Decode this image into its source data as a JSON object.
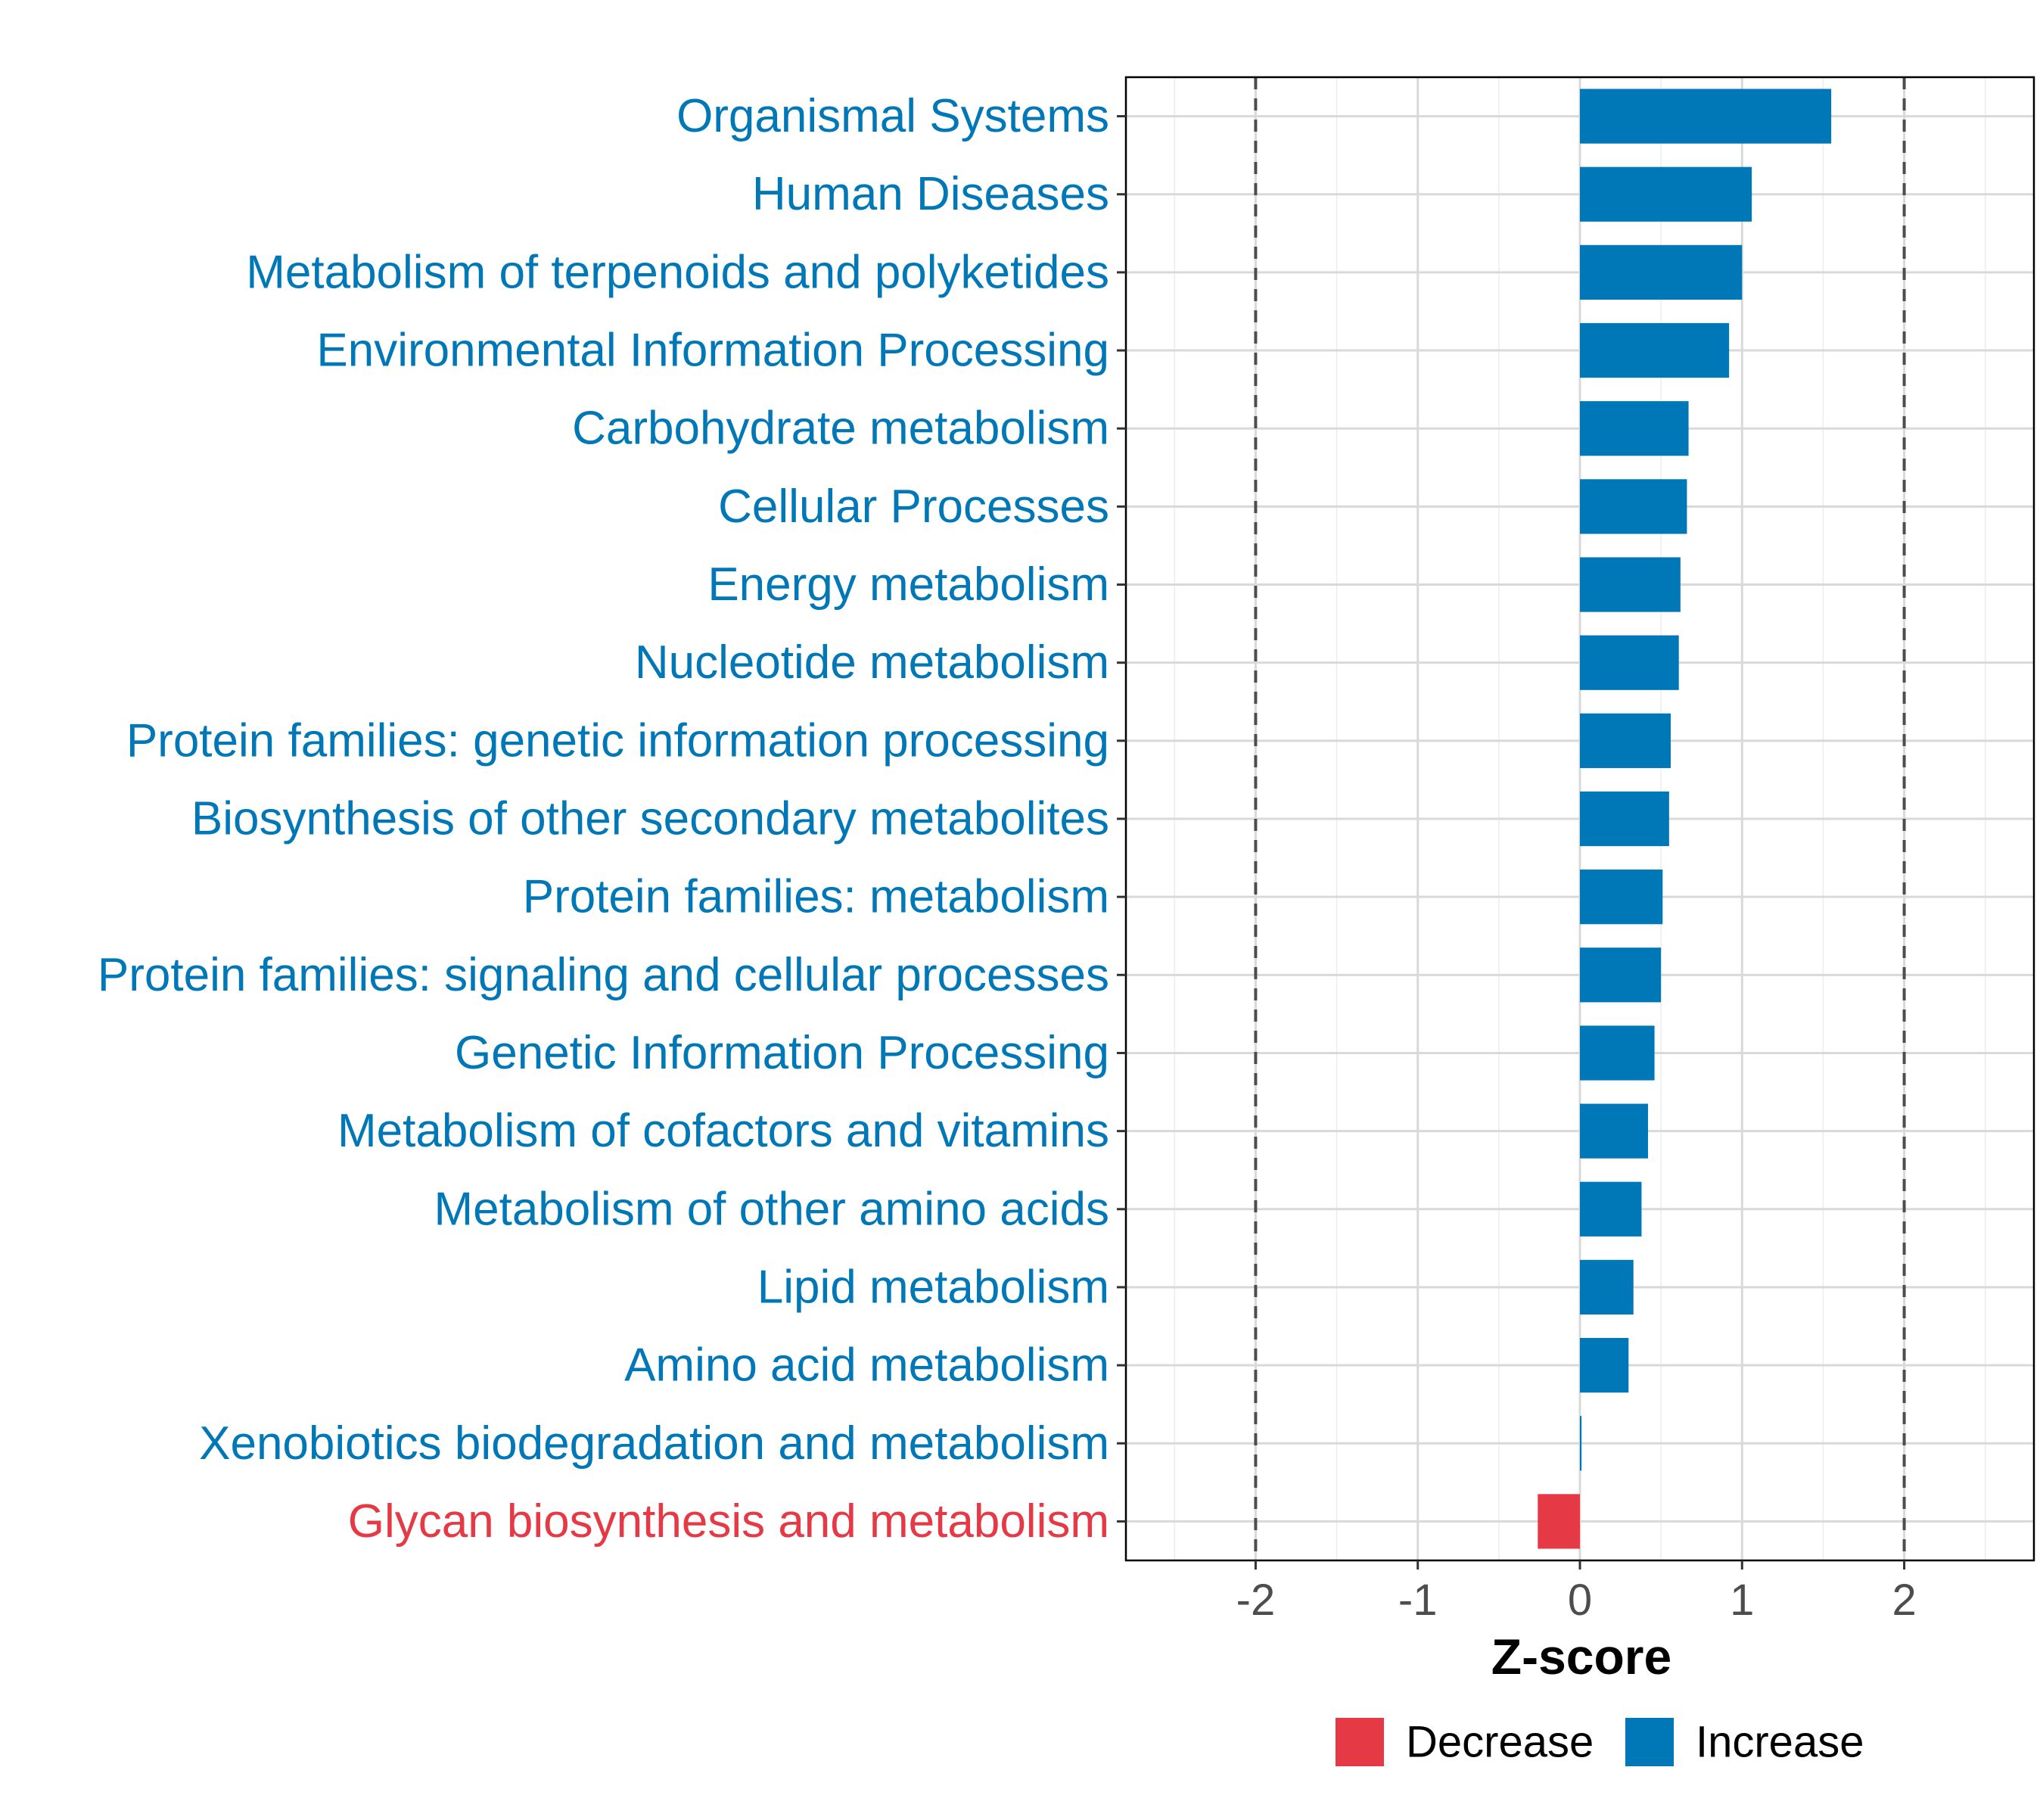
{
  "chart_data": {
    "type": "bar",
    "orientation": "horizontal",
    "xlabel": "Z-score",
    "ylabel": "",
    "xlim": [
      -2.8,
      2.8
    ],
    "x_ticks": [
      -2,
      -1,
      0,
      1,
      2
    ],
    "x_tick_labels": [
      "-2",
      "-1",
      "0",
      "1",
      "2"
    ],
    "reference_lines": [
      -2,
      2
    ],
    "grid": true,
    "categories": [
      "Organismal Systems",
      "Human Diseases",
      "Metabolism of terpenoids and polyketides",
      "Environmental Information Processing",
      "Carbohydrate metabolism",
      "Cellular Processes",
      "Energy metabolism",
      "Nucleotide metabolism",
      "Protein families: genetic information processing",
      "Biosynthesis of other secondary metabolites",
      "Protein families: metabolism",
      "Protein families: signaling and cellular processes",
      "Genetic Information Processing",
      "Metabolism of cofactors and vitamins",
      "Metabolism of other amino acids",
      "Lipid metabolism",
      "Amino acid metabolism",
      "Xenobiotics biodegradation and metabolism",
      "Glycan biosynthesis and metabolism"
    ],
    "values": [
      1.55,
      1.06,
      1.0,
      0.92,
      0.67,
      0.66,
      0.62,
      0.61,
      0.56,
      0.55,
      0.51,
      0.5,
      0.46,
      0.42,
      0.38,
      0.33,
      0.3,
      0.01,
      -0.26
    ],
    "groups": [
      "Increase",
      "Increase",
      "Increase",
      "Increase",
      "Increase",
      "Increase",
      "Increase",
      "Increase",
      "Increase",
      "Increase",
      "Increase",
      "Increase",
      "Increase",
      "Increase",
      "Increase",
      "Increase",
      "Increase",
      "Increase",
      "Decrease"
    ],
    "legend": {
      "position": "bottom",
      "entries": [
        {
          "label": "Decrease",
          "color": "#E63946"
        },
        {
          "label": "Increase",
          "color": "#0077B6"
        }
      ]
    },
    "colors": {
      "Increase": "#0077B6",
      "Decrease": "#E63946"
    }
  }
}
